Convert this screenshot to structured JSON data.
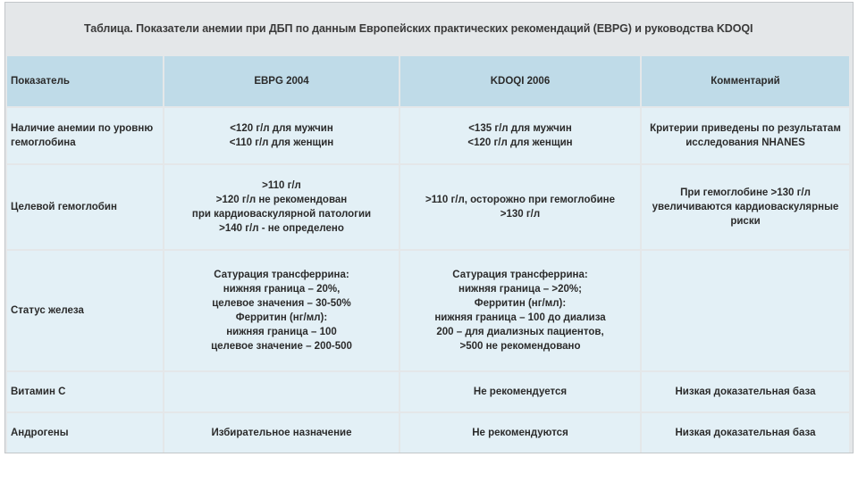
{
  "title": "Таблица. Показатели анемии при ДБП по данным Европейских практических рекомендаций (EBPG) и руководства KDOQI",
  "table": {
    "headers": [
      "Показатель",
      "EBPG 2004",
      "KDOQI 2006",
      "Комментарий"
    ],
    "rows": [
      {
        "indicator": [
          "Наличие анемии по уровню",
          "гемоглобина"
        ],
        "ebpg": [
          "<120 г/л для мужчин",
          "<110 г/л для женщин"
        ],
        "kdoqi": [
          "<135 г/л для мужчин",
          "<120 г/л для женщин"
        ],
        "comment": [
          "Критерии приведены по результатам",
          "исследования NHANES"
        ]
      },
      {
        "indicator": [
          "Целевой гемоглобин"
        ],
        "ebpg": [
          ">110 г/л",
          ">120 г/л не рекомендован",
          "при кардиоваскулярной патологии",
          ">140 г/л - не определено"
        ],
        "kdoqi": [
          ">110 г/л, осторожно при гемоглобине",
          ">130 г/л"
        ],
        "comment": [
          "При гемоглобине >130 г/л",
          "увеличиваются кардиоваскулярные",
          "риски"
        ]
      },
      {
        "indicator": [
          "Статус железа"
        ],
        "ebpg": [
          "Сатурация трансферрина:",
          "нижняя граница – 20%,",
          "целевое значения – 30-50%",
          "Ферритин (нг/мл):",
          "нижняя граница – 100",
          "целевое значение – 200-500"
        ],
        "kdoqi": [
          "Сатурация трансферрина:",
          "нижняя граница – >20%;",
          "Ферритин (нг/мл):",
          "нижняя граница – 100 до диализа",
          "200 – для диализных пациентов,",
          ">500 не рекомендовано"
        ],
        "comment": []
      },
      {
        "indicator": [
          "Витамин С"
        ],
        "ebpg": [],
        "kdoqi": [
          "Не рекомендуется"
        ],
        "comment": [
          "Низкая доказательная база"
        ]
      },
      {
        "indicator": [
          "Андрогены"
        ],
        "ebpg": [
          "Избирательное назначение"
        ],
        "kdoqi": [
          "Не рекомендуются"
        ],
        "comment": [
          "Низкая доказательная база"
        ]
      }
    ]
  }
}
